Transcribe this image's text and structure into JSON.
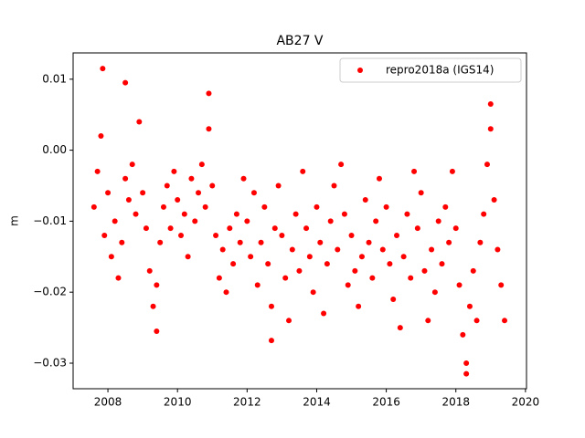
{
  "chart_data": {
    "type": "scatter",
    "title": "AB27 V",
    "ylabel": "m",
    "xlim": [
      2007.0,
      2020.03
    ],
    "ylim": [
      -0.0336,
      0.0137
    ],
    "xticks": [
      2008,
      2010,
      2012,
      2014,
      2016,
      2018,
      2020
    ],
    "yticks": [
      {
        "value": -0.03,
        "label": "−0.03"
      },
      {
        "value": -0.02,
        "label": "−0.02"
      },
      {
        "value": -0.01,
        "label": "−0.01"
      },
      {
        "value": 0,
        "label": "0.00"
      },
      0.01
    ],
    "legend": "upper right",
    "series": [
      {
        "name": "repro2018a (IGS14)",
        "color": "#ff0000",
        "x": [
          2007.6,
          2007.7,
          2007.8,
          2007.9,
          2008.0,
          2008.1,
          2008.2,
          2008.3,
          2008.4,
          2008.5,
          2008.6,
          2008.7,
          2008.8,
          2008.9,
          2009.0,
          2009.1,
          2009.2,
          2009.3,
          2009.4,
          2009.5,
          2009.6,
          2009.7,
          2009.8,
          2009.9,
          2010.0,
          2010.1,
          2010.2,
          2010.3,
          2010.4,
          2010.5,
          2010.6,
          2010.7,
          2010.8,
          2010.9,
          2011.0,
          2011.1,
          2011.2,
          2011.3,
          2011.4,
          2011.5,
          2011.6,
          2011.7,
          2011.8,
          2011.9,
          2012.0,
          2012.1,
          2012.2,
          2012.3,
          2012.4,
          2012.5,
          2012.6,
          2012.7,
          2012.8,
          2012.9,
          2013.0,
          2013.1,
          2013.2,
          2013.3,
          2013.4,
          2013.5,
          2013.6,
          2013.7,
          2013.8,
          2013.9,
          2014.0,
          2014.1,
          2014.2,
          2014.3,
          2014.4,
          2014.5,
          2014.6,
          2014.7,
          2014.8,
          2014.9,
          2015.0,
          2015.1,
          2015.2,
          2015.3,
          2015.4,
          2015.5,
          2015.6,
          2015.7,
          2015.8,
          2015.9,
          2016.0,
          2016.1,
          2016.2,
          2016.3,
          2016.4,
          2016.5,
          2016.6,
          2016.7,
          2016.8,
          2016.9,
          2017.0,
          2017.1,
          2017.2,
          2017.3,
          2017.4,
          2017.5,
          2017.6,
          2017.7,
          2017.8,
          2017.9,
          2018.0,
          2018.1,
          2018.2,
          2018.3,
          2018.4,
          2018.5,
          2018.6,
          2018.7,
          2018.8,
          2018.9,
          2019.0,
          2019.1,
          2019.2,
          2019.3,
          2019.4,
          2007.85,
          2008.5,
          2010.9,
          2018.3,
          2019.0,
          2012.7,
          2009.4
        ],
        "values": [
          -0.008,
          -0.003,
          0.002,
          -0.012,
          -0.006,
          -0.015,
          -0.01,
          -0.018,
          -0.013,
          -0.004,
          -0.007,
          -0.002,
          -0.009,
          0.004,
          -0.006,
          -0.011,
          -0.017,
          -0.022,
          -0.019,
          -0.013,
          -0.008,
          -0.005,
          -0.011,
          -0.003,
          -0.007,
          -0.012,
          -0.009,
          -0.015,
          -0.004,
          -0.01,
          -0.006,
          -0.002,
          -0.008,
          0.003,
          -0.005,
          -0.012,
          -0.018,
          -0.014,
          -0.02,
          -0.011,
          -0.016,
          -0.009,
          -0.013,
          -0.004,
          -0.01,
          -0.015,
          -0.006,
          -0.019,
          -0.013,
          -0.008,
          -0.016,
          -0.022,
          -0.011,
          -0.005,
          -0.012,
          -0.018,
          -0.024,
          -0.014,
          -0.009,
          -0.017,
          -0.003,
          -0.011,
          -0.015,
          -0.02,
          -0.008,
          -0.013,
          -0.023,
          -0.016,
          -0.01,
          -0.005,
          -0.014,
          -0.002,
          -0.009,
          -0.019,
          -0.012,
          -0.017,
          -0.022,
          -0.015,
          -0.007,
          -0.013,
          -0.018,
          -0.01,
          -0.004,
          -0.014,
          -0.008,
          -0.016,
          -0.021,
          -0.012,
          -0.025,
          -0.015,
          -0.009,
          -0.018,
          -0.003,
          -0.011,
          -0.006,
          -0.017,
          -0.024,
          -0.014,
          -0.02,
          -0.01,
          -0.016,
          -0.008,
          -0.013,
          -0.003,
          -0.011,
          -0.019,
          -0.026,
          -0.03,
          -0.022,
          -0.017,
          -0.024,
          -0.013,
          -0.009,
          -0.002,
          0.003,
          -0.007,
          -0.014,
          -0.019,
          -0.024,
          0.0115,
          0.0095,
          0.008,
          -0.0315,
          0.0065,
          -0.0268,
          -0.0255
        ]
      }
    ]
  }
}
